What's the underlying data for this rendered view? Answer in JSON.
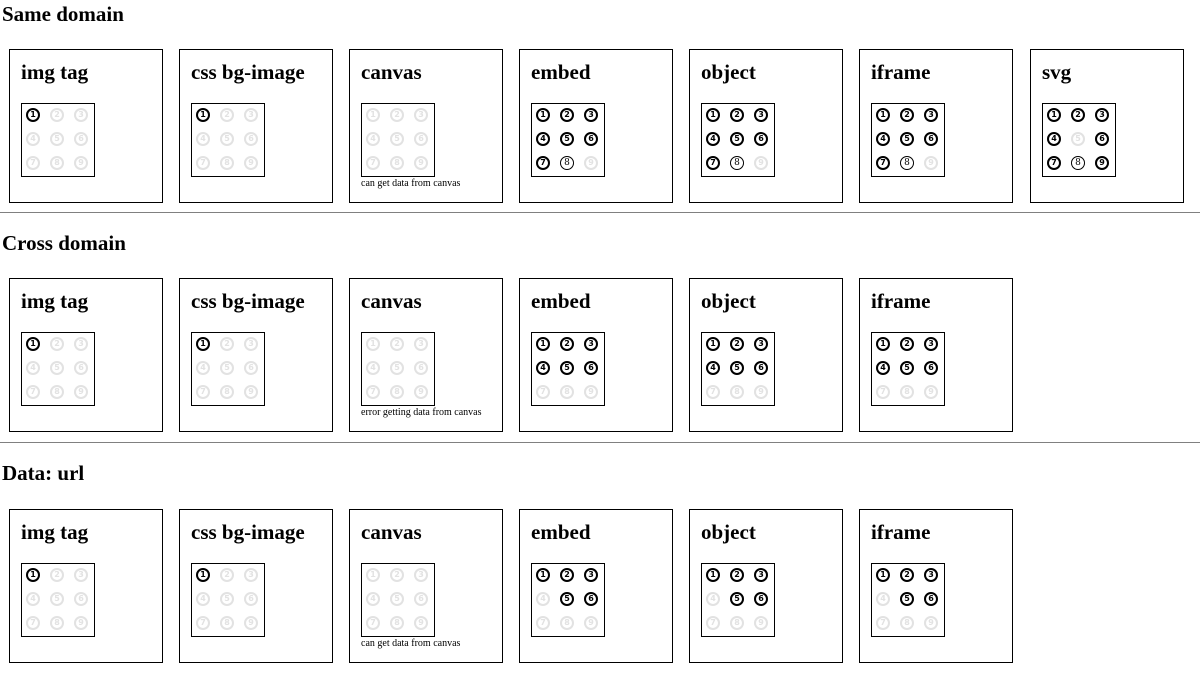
{
  "sections": [
    {
      "title": "Same domain",
      "tiles": [
        {
          "title": "img tag",
          "note": "",
          "cells": [
            "on",
            "off",
            "off",
            "off",
            "off",
            "off",
            "off",
            "off",
            "off"
          ]
        },
        {
          "title": "css bg-image",
          "note": "",
          "cells": [
            "on",
            "off",
            "off",
            "off",
            "off",
            "off",
            "off",
            "off",
            "off"
          ]
        },
        {
          "title": "canvas",
          "note": "can get data from canvas",
          "cells": [
            "off",
            "off",
            "off",
            "off",
            "off",
            "off",
            "off",
            "off",
            "off"
          ]
        },
        {
          "title": "embed",
          "note": "",
          "cells": [
            "on",
            "on",
            "on",
            "on",
            "on",
            "on",
            "on",
            "light",
            "off"
          ]
        },
        {
          "title": "object",
          "note": "",
          "cells": [
            "on",
            "on",
            "on",
            "on",
            "on",
            "on",
            "on",
            "light",
            "off"
          ]
        },
        {
          "title": "iframe",
          "note": "",
          "cells": [
            "on",
            "on",
            "on",
            "on",
            "on",
            "on",
            "on",
            "light",
            "off"
          ]
        },
        {
          "title": "svg",
          "note": "",
          "cells": [
            "on",
            "on",
            "on",
            "on",
            "off",
            "on",
            "on",
            "light",
            "on"
          ]
        }
      ]
    },
    {
      "title": "Cross domain",
      "tiles": [
        {
          "title": "img tag",
          "note": "",
          "cells": [
            "on",
            "off",
            "off",
            "off",
            "off",
            "off",
            "off",
            "off",
            "off"
          ]
        },
        {
          "title": "css bg-image",
          "note": "",
          "cells": [
            "on",
            "off",
            "off",
            "off",
            "off",
            "off",
            "off",
            "off",
            "off"
          ]
        },
        {
          "title": "canvas",
          "note": "error getting data from canvas",
          "cells": [
            "off",
            "off",
            "off",
            "off",
            "off",
            "off",
            "off",
            "off",
            "off"
          ]
        },
        {
          "title": "embed",
          "note": "",
          "cells": [
            "on",
            "on",
            "on",
            "on",
            "on",
            "on",
            "off",
            "off",
            "off"
          ]
        },
        {
          "title": "object",
          "note": "",
          "cells": [
            "on",
            "on",
            "on",
            "on",
            "on",
            "on",
            "off",
            "off",
            "off"
          ]
        },
        {
          "title": "iframe",
          "note": "",
          "cells": [
            "on",
            "on",
            "on",
            "on",
            "on",
            "on",
            "off",
            "off",
            "off"
          ]
        }
      ]
    },
    {
      "title": "Data: url",
      "tiles": [
        {
          "title": "img tag",
          "note": "",
          "cells": [
            "on",
            "off",
            "off",
            "off",
            "off",
            "off",
            "off",
            "off",
            "off"
          ]
        },
        {
          "title": "css bg-image",
          "note": "",
          "cells": [
            "on",
            "off",
            "off",
            "off",
            "off",
            "off",
            "off",
            "off",
            "off"
          ]
        },
        {
          "title": "canvas",
          "note": "can get data from canvas",
          "cells": [
            "off",
            "off",
            "off",
            "off",
            "off",
            "off",
            "off",
            "off",
            "off"
          ]
        },
        {
          "title": "embed",
          "note": "",
          "cells": [
            "on",
            "on",
            "on",
            "off",
            "on",
            "on",
            "off",
            "off",
            "off"
          ]
        },
        {
          "title": "object",
          "note": "",
          "cells": [
            "on",
            "on",
            "on",
            "off",
            "on",
            "on",
            "off",
            "off",
            "off"
          ]
        },
        {
          "title": "iframe",
          "note": "",
          "cells": [
            "on",
            "on",
            "on",
            "off",
            "on",
            "on",
            "off",
            "off",
            "off"
          ]
        }
      ]
    }
  ],
  "digits": [
    "1",
    "2",
    "3",
    "4",
    "5",
    "6",
    "7",
    "8",
    "9"
  ]
}
